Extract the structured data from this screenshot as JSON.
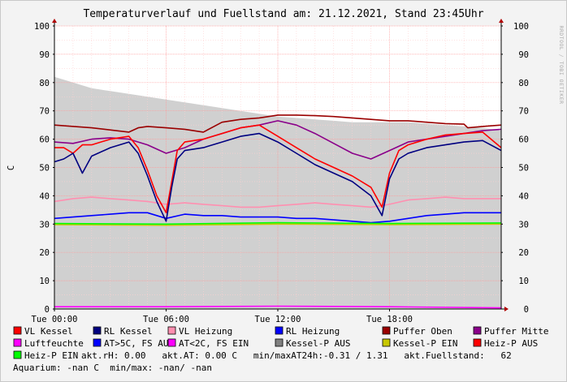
{
  "chart_data": {
    "type": "line",
    "title": "Temperaturverlauf und Fuellstand am: 21.12.2021, Stand 23:45Uhr",
    "watermark": "RRDTOOL / TOBI OETIKER",
    "ylabel": "C",
    "xlim": [
      0,
      24
    ],
    "ylim": [
      0,
      100
    ],
    "x_ticks": [
      {
        "x": 0,
        "label": "Tue 00:00"
      },
      {
        "x": 6,
        "label": "Tue 06:00"
      },
      {
        "x": 12,
        "label": "Tue 12:00"
      },
      {
        "x": 18,
        "label": "Tue 18:00"
      }
    ],
    "y_ticks": [
      0,
      10,
      20,
      30,
      40,
      50,
      60,
      70,
      80,
      90,
      100
    ],
    "grid": true,
    "series": [
      {
        "name": "Fuellstand",
        "color": "#c0c0c0",
        "kind": "area",
        "x": [
          0,
          1,
          2,
          3,
          4,
          5,
          6,
          7,
          8,
          9,
          10,
          11,
          12,
          13,
          14,
          15,
          16,
          17,
          18,
          19,
          20,
          21,
          22,
          23,
          24
        ],
        "y": [
          82,
          80,
          78,
          77,
          76,
          75,
          74,
          73,
          72,
          71,
          70,
          69,
          68,
          67.5,
          67,
          66.5,
          66,
          66,
          66,
          66,
          65.5,
          65,
          64.5,
          64,
          63
        ]
      },
      {
        "name": "Puffer Oben",
        "color": "#9a0000",
        "x": [
          0,
          2,
          4,
          4.5,
          5,
          6,
          7,
          8,
          9,
          10,
          11,
          12,
          13,
          14,
          15,
          16,
          17,
          18,
          19,
          20,
          21,
          22,
          22.2,
          23,
          24
        ],
        "y": [
          65,
          64,
          62.5,
          64,
          64.5,
          64,
          63.5,
          62.5,
          66,
          67,
          67.5,
          68.5,
          68.5,
          68.3,
          68,
          67.5,
          67,
          66.5,
          66.5,
          66,
          65.5,
          65.3,
          64,
          64.5,
          65
        ]
      },
      {
        "name": "Puffer Mitte",
        "color": "#8a008a",
        "x": [
          0,
          1,
          2,
          3,
          4,
          5,
          6,
          7,
          8,
          9,
          10,
          11,
          12,
          13,
          14,
          15,
          16,
          17,
          18,
          19,
          20,
          21,
          22,
          23,
          24
        ],
        "y": [
          59,
          58.5,
          60,
          60.5,
          60,
          58,
          55,
          57,
          60,
          62,
          64,
          65,
          66.5,
          65,
          62,
          58.5,
          55,
          53,
          56,
          59,
          60,
          61,
          62,
          63,
          63.5
        ]
      },
      {
        "name": "VL Heizung",
        "color": "#ff8fb0",
        "x": [
          0,
          1,
          2,
          3,
          4,
          5,
          6,
          7,
          8,
          9,
          10,
          11,
          12,
          13,
          14,
          15,
          16,
          17,
          18,
          19,
          20,
          21,
          22,
          23,
          24
        ],
        "y": [
          38,
          39,
          39.5,
          39,
          38.5,
          38,
          37,
          37.5,
          37,
          36.5,
          36,
          36,
          36.5,
          37,
          37.5,
          37,
          36.5,
          36,
          37,
          38.5,
          39,
          39.5,
          39,
          39,
          39
        ]
      },
      {
        "name": "RL Heizung",
        "color": "#0000ff",
        "x": [
          0,
          1,
          2,
          3,
          4,
          5,
          6,
          7,
          8,
          9,
          10,
          11,
          12,
          13,
          14,
          15,
          16,
          17,
          18,
          19,
          20,
          21,
          22,
          23,
          24
        ],
        "y": [
          32,
          32.5,
          33,
          33.5,
          34,
          34,
          32,
          33.5,
          33,
          33,
          32.5,
          32.5,
          32.5,
          32,
          32,
          31.5,
          31,
          30.5,
          31,
          32,
          33,
          33.5,
          34,
          34,
          34
        ]
      },
      {
        "name": "VL Kessel",
        "color": "#ff0000",
        "x": [
          0,
          0.5,
          1,
          1.5,
          2,
          3,
          4,
          4.5,
          5,
          5.5,
          6,
          6.3,
          6.6,
          7,
          8,
          9,
          10,
          11,
          12,
          13,
          14,
          15,
          16,
          17,
          17.6,
          18,
          18.5,
          19,
          20,
          21,
          22,
          23,
          24
        ],
        "y": [
          57,
          57,
          55,
          58,
          58,
          60,
          61,
          57,
          49,
          40,
          34,
          45,
          56,
          59,
          60,
          62,
          64,
          65,
          61,
          57,
          53,
          50,
          47,
          43,
          36,
          48,
          56,
          58,
          60,
          61.5,
          62,
          62.5,
          57
        ]
      },
      {
        "name": "RL Kessel",
        "color": "#000080",
        "x": [
          0,
          0.5,
          1,
          1.5,
          2,
          3,
          4,
          4.5,
          5,
          5.5,
          6,
          6.3,
          6.6,
          7,
          8,
          9,
          10,
          11,
          12,
          13,
          14,
          15,
          16,
          17,
          17.6,
          18,
          18.5,
          19,
          20,
          21,
          22,
          23,
          24
        ],
        "y": [
          52,
          53,
          55,
          48,
          54,
          57,
          59,
          55,
          47,
          38,
          31,
          43,
          53,
          56,
          57,
          59,
          61,
          62,
          59,
          55,
          51,
          48,
          45,
          40,
          33,
          46,
          53,
          55,
          57,
          58,
          59,
          59.5,
          56
        ]
      },
      {
        "name": "Kessel-P EIN",
        "color": "#c8c800",
        "x": [
          0,
          6,
          12,
          18,
          24
        ],
        "y": [
          29.8,
          29.6,
          30,
          29.8,
          30
        ]
      },
      {
        "name": "Heiz-P EIN",
        "color": "#00ff00",
        "x": [
          0,
          6,
          12,
          18,
          24
        ],
        "y": [
          30.2,
          30,
          30.5,
          30.2,
          30.4
        ]
      },
      {
        "name": "Luftfeuchte",
        "color": "#ff00ff",
        "x": [
          0,
          6,
          12,
          18,
          24
        ],
        "y": [
          0.8,
          0.8,
          1.0,
          0.8,
          0.4
        ]
      }
    ],
    "legend": {
      "placement": "bottom",
      "items": [
        {
          "label": "VL Kessel",
          "color": "#ff0000"
        },
        {
          "label": "RL Kessel",
          "color": "#000080"
        },
        {
          "label": "VL Heizung",
          "color": "#ff8fb0"
        },
        {
          "label": "RL Heizung",
          "color": "#0000ff"
        },
        {
          "label": "Puffer Oben",
          "color": "#9a0000"
        },
        {
          "label": "Puffer Mitte",
          "color": "#8a008a"
        },
        {
          "label": "Luftfeuchte",
          "color": "#ff00ff"
        },
        {
          "label": "AT>5C, FS AUS",
          "color": "#0000ff"
        },
        {
          "label": "AT<2C, FS EIN",
          "color": "#ff00ff"
        },
        {
          "label": "Kessel-P AUS",
          "color": "#808080"
        },
        {
          "label": "Kessel-P EIN",
          "color": "#c8c800"
        },
        {
          "label": "Heiz-P AUS",
          "color": "#ff0000"
        },
        {
          "label": "Heiz-P EIN",
          "color": "#00ff00"
        }
      ]
    },
    "info_row3": "akt.rH: 0.00   akt.AT: 0.00 C   min/maxAT24h:-0.31 / 1.31   akt.Fuellstand:   62",
    "info_row4": "Aquarium: -nan C  min/max: -nan/ -nan"
  }
}
